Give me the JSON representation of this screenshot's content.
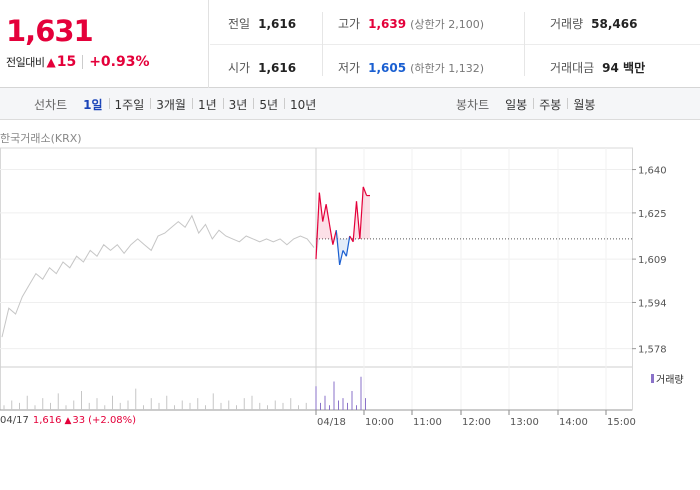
{
  "summary": {
    "price": "1,631",
    "change_label": "전일대비",
    "change_arrow": "▲",
    "change_value": "15",
    "change_rate": "+0.93%",
    "prev_close_label": "전일",
    "prev_close": "1,616",
    "high_label": "고가",
    "high": "1,639",
    "upper_limit": "(상한가 2,100)",
    "volume_label": "거래량",
    "volume": "58,466",
    "open_label": "시가",
    "open": "1,616",
    "low_label": "저가",
    "low": "1,605",
    "lower_limit": "(하한가 1,132)",
    "amount_label": "거래대금",
    "amount": "94 백만"
  },
  "toolbar": {
    "line_title": "선차트",
    "line_periods": [
      "1일",
      "1주일",
      "3개월",
      "1년",
      "3년",
      "5년",
      "10년"
    ],
    "active_period": "1일",
    "candle_title": "봉차트",
    "candle_periods": [
      "일봉",
      "주봉",
      "월봉"
    ]
  },
  "chart": {
    "source": "한국거래소(KRX)",
    "y_ticks": [
      "1,640",
      "1,625",
      "1,609",
      "1,594",
      "1,578"
    ],
    "x_ticks": [
      "04/18",
      "10:00",
      "11:00",
      "12:00",
      "13:00",
      "14:00",
      "15:00"
    ],
    "volume_legend": "거래량",
    "prev_day": {
      "date": "04/17",
      "price": "1,616",
      "arrow": "▲",
      "change": "33",
      "rate": "(+2.08%)"
    },
    "colors": {
      "up": "#e4003a",
      "down": "#1a5fd1",
      "prev": "#c6c6c6",
      "volume_today": "#8a72c9"
    }
  },
  "chart_data": {
    "type": "line",
    "title": "",
    "ylabel": "",
    "xlabel": "",
    "ylim": [
      1572,
      1644
    ],
    "y_ticks": [
      1640,
      1625,
      1609,
      1594,
      1578
    ],
    "baseline": 1616,
    "x_labels": [
      "04/18",
      "10:00",
      "11:00",
      "12:00",
      "13:00",
      "14:00",
      "15:00"
    ],
    "series": [
      {
        "name": "",
        "values": [
          1582,
          1592,
          1590,
          1596,
          1600,
          1604,
          1602,
          1606,
          1604,
          1608,
          1606,
          1610,
          1608,
          1612,
          1610,
          1614,
          1612,
          1614,
          1611,
          1614,
          1616,
          1614,
          1612,
          1617,
          1618,
          1620,
          1622,
          1620,
          1624,
          1618,
          1621,
          1616,
          1619,
          1617,
          1616,
          1615,
          1617,
          1616,
          1615,
          1616,
          1615,
          1616,
          1614,
          1616,
          1617,
          1616,
          1613
        ]
      },
      {
        "name": "",
        "values": [
          1609,
          1632,
          1622,
          1628,
          1621,
          1614,
          1619,
          1607,
          1612,
          1610,
          1617,
          1615,
          1629,
          1616,
          1634,
          1631,
          1631
        ]
      }
    ],
    "volume": {
      "name": "",
      "prev_day": [
        2,
        4,
        3,
        6,
        2,
        5,
        3,
        7,
        2,
        4,
        8,
        3,
        5,
        2,
        6,
        3,
        4,
        9,
        2,
        5,
        3,
        6,
        2,
        4,
        3,
        5,
        2,
        7,
        3,
        4,
        2,
        5,
        6,
        3,
        2,
        4,
        3,
        5,
        2,
        3
      ],
      "today": [
        10,
        3,
        6,
        2,
        12,
        4,
        5,
        3,
        8,
        2,
        14,
        5
      ]
    }
  }
}
